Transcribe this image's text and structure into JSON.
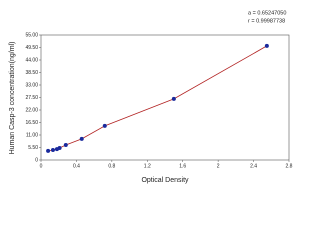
{
  "chart_data": {
    "type": "scatter",
    "stats": [
      "a = 0.65247050",
      "r = 0.99987738"
    ],
    "xlabel": "Optical Density",
    "ylabel": "Human Casp-3 concentration(ng/ml)",
    "x": [
      0.08,
      0.135,
      0.18,
      0.21,
      0.28,
      0.46,
      0.72,
      1.5,
      2.55
    ],
    "series": [
      {
        "color": "#1a2a9c",
        "values": [
          4,
          4.4,
          4.8,
          5.3,
          6.6,
          9.3,
          15,
          26.9,
          50.2
        ]
      }
    ],
    "curve_color": "#b22222",
    "xlim": [
      0,
      2.8
    ],
    "xticks": [
      0,
      0.4,
      0.8,
      1.2,
      1.6,
      2,
      2.4,
      2.8
    ],
    "ylim": [
      0,
      55
    ],
    "yticks": [
      0,
      {
        "value": 5.5,
        "label": "5.50"
      },
      {
        "value": 11,
        "label": "11.00"
      },
      {
        "value": 16.5,
        "label": "16.50"
      },
      {
        "value": 22,
        "label": "22.00"
      },
      {
        "value": 27.5,
        "label": "27.50"
      },
      {
        "value": 33,
        "label": "33.00"
      },
      {
        "value": 38.5,
        "label": "38.50"
      },
      {
        "value": 44,
        "label": "44.00"
      },
      {
        "value": 49.5,
        "label": "49.50"
      },
      {
        "value": 55,
        "label": "55.00"
      }
    ]
  }
}
